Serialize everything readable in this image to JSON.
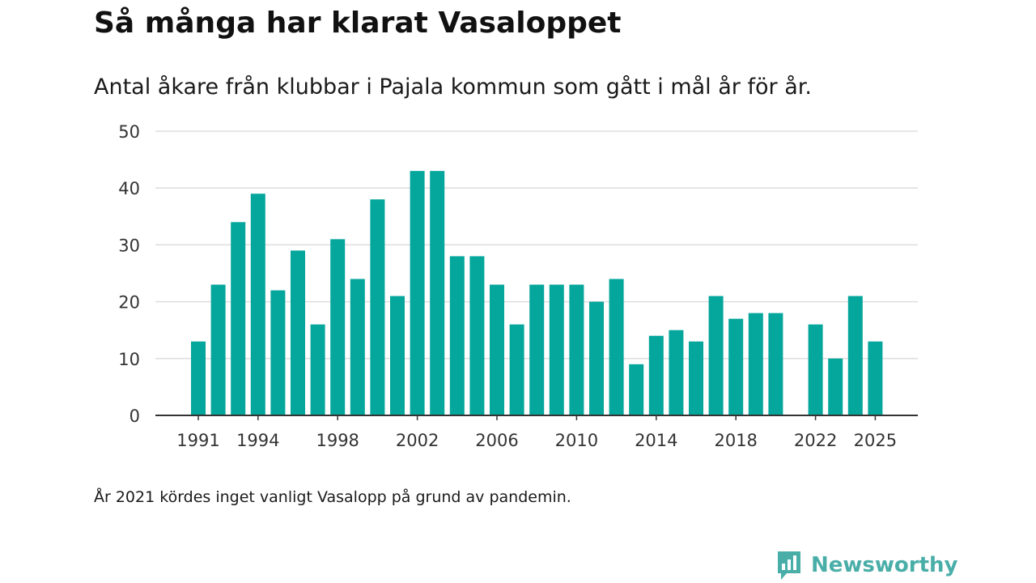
{
  "title": "Så många har klarat Vasaloppet",
  "subtitle": "Antal åkare från klubbar i Pajala kommun som gått i mål år för år.",
  "note": "År 2021 kördes inget vanligt Vasalopp på grund av pandemin.",
  "brand": {
    "name": "Newsworthy",
    "icon": "newsworthy-logo-icon",
    "color": "#4aaea8"
  },
  "colors": {
    "bar": "#05a69c",
    "grid": "#dddddd",
    "axis": "#333333"
  },
  "chart_data": {
    "type": "bar",
    "title": "Så många har klarat Vasaloppet",
    "xlabel": "",
    "ylabel": "",
    "ylim": [
      0,
      50
    ],
    "yticks": [
      0,
      10,
      20,
      30,
      40,
      50
    ],
    "xticks": [
      1991,
      1994,
      1998,
      2002,
      2006,
      2010,
      2014,
      2018,
      2022,
      2025
    ],
    "grid": true,
    "categories": [
      1991,
      1992,
      1993,
      1994,
      1995,
      1996,
      1997,
      1998,
      1999,
      2000,
      2001,
      2002,
      2003,
      2004,
      2005,
      2006,
      2007,
      2008,
      2009,
      2010,
      2011,
      2012,
      2013,
      2014,
      2015,
      2016,
      2017,
      2018,
      2019,
      2020,
      2021,
      2022,
      2023,
      2024,
      2025
    ],
    "values": [
      13,
      23,
      34,
      39,
      22,
      29,
      16,
      31,
      24,
      38,
      21,
      43,
      43,
      28,
      28,
      23,
      16,
      23,
      23,
      23,
      20,
      24,
      9,
      14,
      15,
      13,
      21,
      17,
      18,
      18,
      null,
      16,
      10,
      21,
      13
    ]
  }
}
